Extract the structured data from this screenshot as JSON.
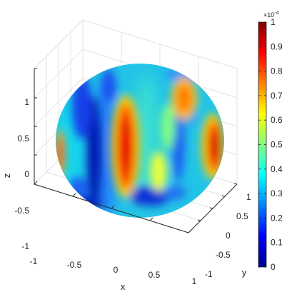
{
  "chart_data": {
    "type": "heatmap",
    "title": "",
    "xlabel": "x",
    "ylabel": "y",
    "zlabel": "z",
    "xlim": [
      -1,
      1
    ],
    "ylim": [
      -1,
      1
    ],
    "zlim": [
      -1,
      1
    ],
    "x_ticks": [
      "-1",
      "-0.5",
      "0",
      "0.5",
      "1"
    ],
    "y_ticks": [
      "-1",
      "-0.5",
      "0",
      "0.5",
      "1"
    ],
    "z_ticks": [
      "-1",
      "-0.5",
      "0",
      "0.5",
      "1"
    ],
    "grid": true,
    "colormap": "jet",
    "colorbar": {
      "placement": "right",
      "range": [
        0,
        1
      ],
      "ticks": [
        "0",
        "0.1",
        "0.2",
        "0.3",
        "0.4",
        "0.5",
        "0.6",
        "0.7",
        "0.8",
        "0.9",
        "1"
      ],
      "exponent_label": "×10",
      "exponent_power": "-4"
    }
  }
}
